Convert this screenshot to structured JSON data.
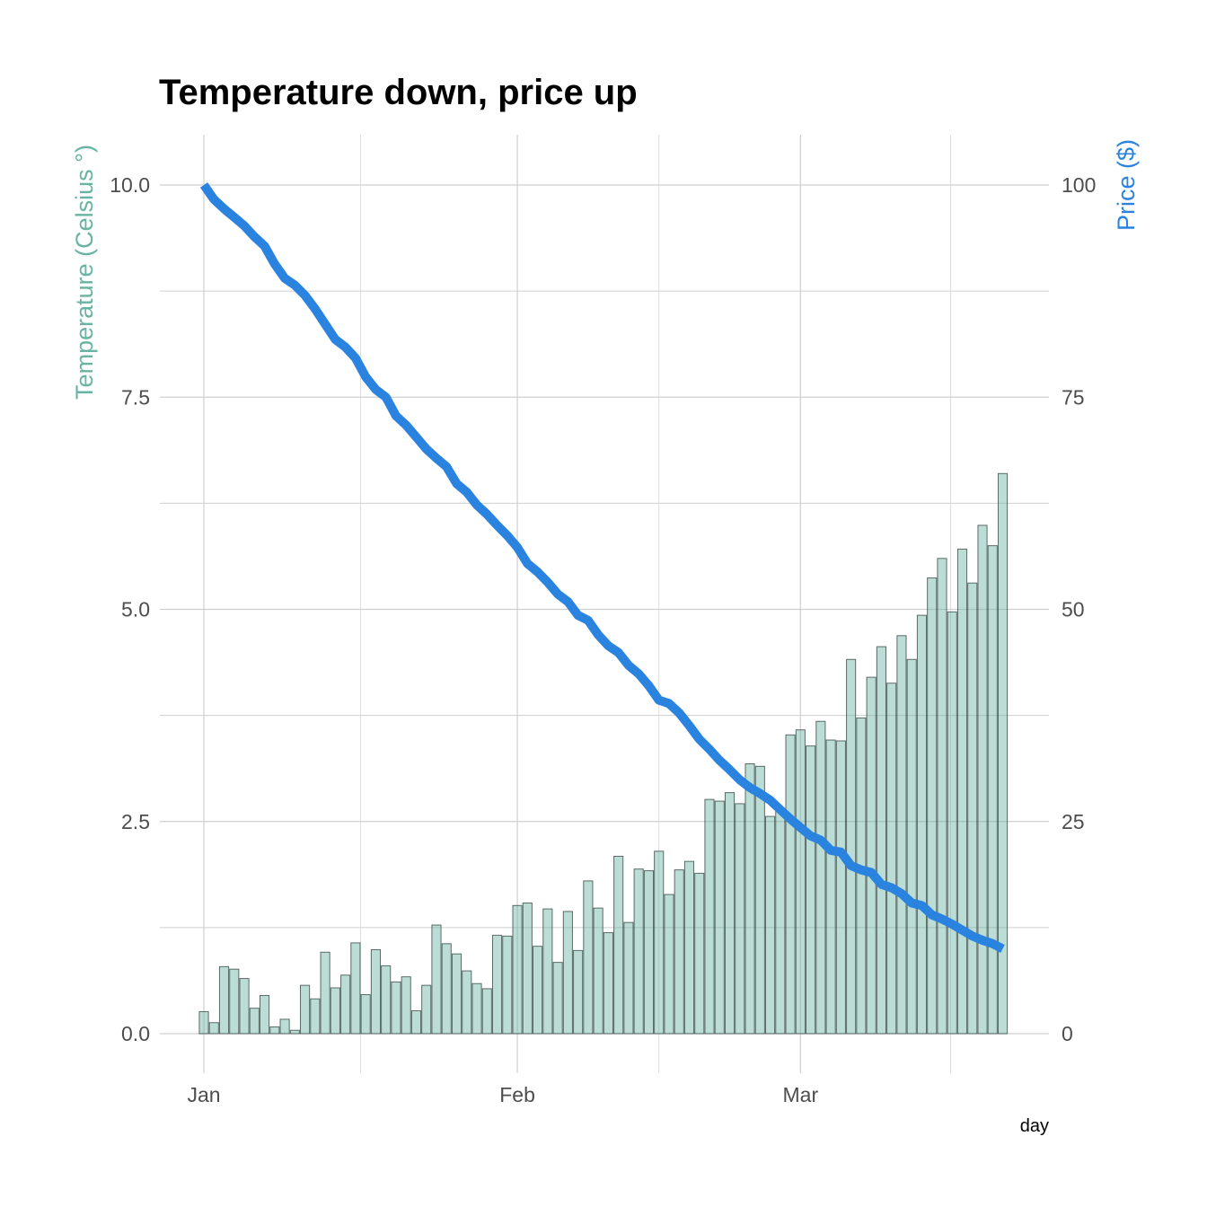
{
  "chart_data": {
    "type": "bar+line",
    "title": "Temperature down, price up",
    "xlabel": "day",
    "ylabel_left": "Temperature (Celsius °)",
    "ylabel_right": "Price ($)",
    "x_ticks": [
      {
        "label": "Jan",
        "day": "Jan 1"
      },
      {
        "label": "Feb",
        "day": "Feb 1"
      },
      {
        "label": "Mar",
        "day": "Mar 1"
      }
    ],
    "y_left_ticks": [
      "0.0",
      "2.5",
      "5.0",
      "7.5",
      "10.0"
    ],
    "y_right_ticks": [
      "0",
      "25",
      "50",
      "75",
      "100"
    ],
    "ylim_left": [
      0,
      10
    ],
    "ylim_right": [
      0,
      100
    ],
    "grid": true,
    "colors": {
      "temperature": "#69b3a2",
      "price": "#2b83e0"
    },
    "dates": [
      "Jan 1",
      "Jan 2",
      "Jan 3",
      "Jan 4",
      "Jan 5",
      "Jan 6",
      "Jan 7",
      "Jan 8",
      "Jan 9",
      "Jan 10",
      "Jan 11",
      "Jan 12",
      "Jan 13",
      "Jan 14",
      "Jan 15",
      "Jan 16",
      "Jan 17",
      "Jan 18",
      "Jan 19",
      "Jan 20",
      "Jan 21",
      "Jan 22",
      "Jan 23",
      "Jan 24",
      "Jan 25",
      "Jan 26",
      "Jan 27",
      "Jan 28",
      "Jan 29",
      "Jan 30",
      "Jan 31",
      "Feb 1",
      "Feb 2",
      "Feb 3",
      "Feb 4",
      "Feb 5",
      "Feb 6",
      "Feb 7",
      "Feb 8",
      "Feb 9",
      "Feb 10",
      "Feb 11",
      "Feb 12",
      "Feb 13",
      "Feb 14",
      "Feb 15",
      "Feb 16",
      "Feb 17",
      "Feb 18",
      "Feb 19",
      "Feb 20",
      "Feb 21",
      "Feb 22",
      "Feb 23",
      "Feb 24",
      "Feb 25",
      "Feb 26",
      "Feb 27",
      "Feb 28",
      "Mar 1",
      "Mar 2",
      "Mar 3",
      "Mar 4",
      "Mar 5",
      "Mar 6",
      "Mar 7",
      "Mar 8",
      "Mar 9",
      "Mar 10",
      "Mar 11",
      "Mar 12",
      "Mar 13",
      "Mar 14",
      "Mar 15",
      "Mar 16",
      "Mar 17",
      "Mar 18",
      "Mar 19",
      "Mar 20",
      "Mar 21"
    ],
    "series": [
      {
        "name": "Temperature (Celsius °)",
        "type": "bar",
        "axis": "left",
        "values": [
          0.26,
          0.13,
          0.79,
          0.76,
          0.65,
          0.3,
          0.45,
          0.08,
          0.17,
          0.04,
          0.57,
          0.41,
          0.96,
          0.54,
          0.69,
          1.07,
          0.46,
          0.99,
          0.8,
          0.61,
          0.67,
          0.27,
          0.57,
          1.28,
          1.06,
          0.94,
          0.74,
          0.59,
          0.53,
          1.16,
          1.15,
          1.51,
          1.54,
          1.03,
          1.47,
          0.84,
          1.44,
          0.98,
          1.8,
          1.48,
          1.19,
          2.09,
          1.31,
          1.94,
          1.92,
          2.15,
          1.64,
          1.93,
          2.03,
          1.89,
          2.76,
          2.74,
          2.84,
          2.71,
          3.18,
          3.15,
          2.56,
          2.65,
          3.52,
          3.58,
          3.39,
          3.68,
          3.46,
          3.45,
          4.41,
          3.72,
          4.2,
          4.56,
          4.13,
          4.69,
          4.41,
          4.93,
          5.37,
          5.6,
          4.97,
          5.71,
          5.31,
          5.99,
          5.75,
          6.6
        ]
      },
      {
        "name": "Price ($)",
        "type": "line",
        "axis": "right",
        "values": [
          100,
          98.3,
          97.2,
          96.2,
          95.2,
          93.9,
          92.8,
          90.7,
          89.0,
          88.2,
          87.0,
          85.4,
          83.6,
          81.8,
          80.9,
          79.6,
          77.4,
          75.9,
          75.0,
          72.8,
          71.7,
          70.3,
          68.9,
          67.8,
          66.8,
          64.8,
          63.8,
          62.3,
          61.2,
          59.9,
          58.7,
          57.3,
          55.4,
          54.4,
          53.2,
          51.8,
          50.9,
          49.3,
          48.7,
          47.0,
          45.7,
          44.9,
          43.4,
          42.4,
          41.0,
          39.3,
          38.9,
          37.8,
          36.3,
          34.7,
          33.5,
          32.2,
          31.1,
          29.9,
          29.0,
          28.3,
          27.5,
          26.4,
          25.3,
          24.3,
          23.3,
          22.8,
          21.6,
          21.4,
          19.8,
          19.3,
          19.0,
          17.6,
          17.2,
          16.5,
          15.4,
          15.1,
          14.0,
          13.5,
          12.9,
          12.2,
          11.5,
          11.0,
          10.6,
          10.0
        ]
      }
    ]
  }
}
